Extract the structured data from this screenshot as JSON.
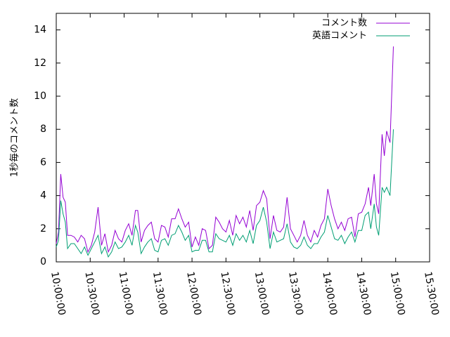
{
  "chart_data": {
    "type": "line",
    "ylabel": "1秒毎のコメント数",
    "xlim": [
      "10:00:00",
      "15:30:00"
    ],
    "ylim": [
      0,
      15
    ],
    "grid": false,
    "legend_position": "top-right",
    "xticks": [
      "10:00:00",
      "10:30:00",
      "11:00:00",
      "11:30:00",
      "12:00:00",
      "12:30:00",
      "13:00:00",
      "13:30:00",
      "14:00:00",
      "14:30:00",
      "15:00:00",
      "15:30:00"
    ],
    "yticks": [
      "0",
      "2",
      "4",
      "6",
      "8",
      "10",
      "12",
      "14"
    ],
    "series": [
      {
        "name": "コメント数",
        "color": "#9400d3",
        "points": [
          [
            "10:00:00",
            1.1
          ],
          [
            "10:02:00",
            1.8
          ],
          [
            "10:04:00",
            5.3
          ],
          [
            "10:06:00",
            3.9
          ],
          [
            "10:08:00",
            3.6
          ],
          [
            "10:10:00",
            1.6
          ],
          [
            "10:13:00",
            1.6
          ],
          [
            "10:16:00",
            1.5
          ],
          [
            "10:19:00",
            1.2
          ],
          [
            "10:22:00",
            1.6
          ],
          [
            "10:25:00",
            1.4
          ],
          [
            "10:28:00",
            0.6
          ],
          [
            "10:31:00",
            1.0
          ],
          [
            "10:34:00",
            1.8
          ],
          [
            "10:37:00",
            3.3
          ],
          [
            "10:40:00",
            1.0
          ],
          [
            "10:43:00",
            1.7
          ],
          [
            "10:46:00",
            0.6
          ],
          [
            "10:49:00",
            1.0
          ],
          [
            "10:52:00",
            1.9
          ],
          [
            "10:55:00",
            1.4
          ],
          [
            "10:58:00",
            1.2
          ],
          [
            "11:01:00",
            1.9
          ],
          [
            "11:04:00",
            2.3
          ],
          [
            "11:07:00",
            1.6
          ],
          [
            "11:10:00",
            3.1
          ],
          [
            "11:12:00",
            3.1
          ],
          [
            "11:15:00",
            1.2
          ],
          [
            "11:18:00",
            1.9
          ],
          [
            "11:21:00",
            2.2
          ],
          [
            "11:24:00",
            2.4
          ],
          [
            "11:27:00",
            1.4
          ],
          [
            "11:30:00",
            1.2
          ],
          [
            "11:33:00",
            2.2
          ],
          [
            "11:36:00",
            2.1
          ],
          [
            "11:39:00",
            1.5
          ],
          [
            "11:42:00",
            2.6
          ],
          [
            "11:45:00",
            2.6
          ],
          [
            "11:48:00",
            3.2
          ],
          [
            "11:51:00",
            2.6
          ],
          [
            "11:54:00",
            2.1
          ],
          [
            "11:57:00",
            2.4
          ],
          [
            "12:00:00",
            0.9
          ],
          [
            "12:03:00",
            1.5
          ],
          [
            "12:06:00",
            1.0
          ],
          [
            "12:09:00",
            2.0
          ],
          [
            "12:12:00",
            1.9
          ],
          [
            "12:15:00",
            0.8
          ],
          [
            "12:18:00",
            1.0
          ],
          [
            "12:21:00",
            2.7
          ],
          [
            "12:24:00",
            2.4
          ],
          [
            "12:27:00",
            2.0
          ],
          [
            "12:30:00",
            1.8
          ],
          [
            "12:33:00",
            2.5
          ],
          [
            "12:36:00",
            1.6
          ],
          [
            "12:39:00",
            2.8
          ],
          [
            "12:42:00",
            2.3
          ],
          [
            "12:45:00",
            2.7
          ],
          [
            "12:48:00",
            2.1
          ],
          [
            "12:51:00",
            3.1
          ],
          [
            "12:54:00",
            1.9
          ],
          [
            "12:57:00",
            3.4
          ],
          [
            "13:00:00",
            3.6
          ],
          [
            "13:03:00",
            4.3
          ],
          [
            "13:06:00",
            3.8
          ],
          [
            "13:09:00",
            1.4
          ],
          [
            "13:12:00",
            2.8
          ],
          [
            "13:15:00",
            1.9
          ],
          [
            "13:18:00",
            1.8
          ],
          [
            "13:21:00",
            2.1
          ],
          [
            "13:24:00",
            3.9
          ],
          [
            "13:27:00",
            2.0
          ],
          [
            "13:30:00",
            1.6
          ],
          [
            "13:33:00",
            1.2
          ],
          [
            "13:36:00",
            1.6
          ],
          [
            "13:39:00",
            2.5
          ],
          [
            "13:42:00",
            1.6
          ],
          [
            "13:45:00",
            1.2
          ],
          [
            "13:48:00",
            1.9
          ],
          [
            "13:51:00",
            1.5
          ],
          [
            "13:54:00",
            2.2
          ],
          [
            "13:57:00",
            2.6
          ],
          [
            "14:00:00",
            4.4
          ],
          [
            "14:03:00",
            3.4
          ],
          [
            "14:06:00",
            2.6
          ],
          [
            "14:09:00",
            2.0
          ],
          [
            "14:12:00",
            2.4
          ],
          [
            "14:15:00",
            1.9
          ],
          [
            "14:18:00",
            2.6
          ],
          [
            "14:21:00",
            2.7
          ],
          [
            "14:24:00",
            1.5
          ],
          [
            "14:27:00",
            2.9
          ],
          [
            "14:30:00",
            3.0
          ],
          [
            "14:33:00",
            3.5
          ],
          [
            "14:36:00",
            4.5
          ],
          [
            "14:38:00",
            3.4
          ],
          [
            "14:41:00",
            5.3
          ],
          [
            "14:43:00",
            3.5
          ],
          [
            "14:45:00",
            2.9
          ],
          [
            "14:48:00",
            7.7
          ],
          [
            "14:50:00",
            6.4
          ],
          [
            "14:52:00",
            7.9
          ],
          [
            "14:55:00",
            7.2
          ],
          [
            "14:58:00",
            13.0
          ]
        ]
      },
      {
        "name": "英語コメント",
        "color": "#009e73",
        "points": [
          [
            "10:00:00",
            0.9
          ],
          [
            "10:02:00",
            1.3
          ],
          [
            "10:04:00",
            3.7
          ],
          [
            "10:06:00",
            2.9
          ],
          [
            "10:08:00",
            2.4
          ],
          [
            "10:10:00",
            0.8
          ],
          [
            "10:13:00",
            1.1
          ],
          [
            "10:16:00",
            1.1
          ],
          [
            "10:19:00",
            0.8
          ],
          [
            "10:22:00",
            0.5
          ],
          [
            "10:25:00",
            0.9
          ],
          [
            "10:28:00",
            0.4
          ],
          [
            "10:31:00",
            0.8
          ],
          [
            "10:34:00",
            1.2
          ],
          [
            "10:37:00",
            1.6
          ],
          [
            "10:40:00",
            0.5
          ],
          [
            "10:43:00",
            0.9
          ],
          [
            "10:46:00",
            0.3
          ],
          [
            "10:49:00",
            0.6
          ],
          [
            "10:52:00",
            1.2
          ],
          [
            "10:55:00",
            0.8
          ],
          [
            "10:58:00",
            0.9
          ],
          [
            "11:01:00",
            1.2
          ],
          [
            "11:04:00",
            1.6
          ],
          [
            "11:07:00",
            1.0
          ],
          [
            "11:10:00",
            2.2
          ],
          [
            "11:12:00",
            1.8
          ],
          [
            "11:15:00",
            0.5
          ],
          [
            "11:18:00",
            0.9
          ],
          [
            "11:21:00",
            1.2
          ],
          [
            "11:24:00",
            1.4
          ],
          [
            "11:27:00",
            0.7
          ],
          [
            "11:30:00",
            0.6
          ],
          [
            "11:33:00",
            1.3
          ],
          [
            "11:36:00",
            1.4
          ],
          [
            "11:39:00",
            1.0
          ],
          [
            "11:42:00",
            1.6
          ],
          [
            "11:45:00",
            1.7
          ],
          [
            "11:48:00",
            2.2
          ],
          [
            "11:51:00",
            1.8
          ],
          [
            "11:54:00",
            1.3
          ],
          [
            "11:57:00",
            1.6
          ],
          [
            "12:00:00",
            0.6
          ],
          [
            "12:03:00",
            0.7
          ],
          [
            "12:06:00",
            0.7
          ],
          [
            "12:09:00",
            1.3
          ],
          [
            "12:12:00",
            1.3
          ],
          [
            "12:15:00",
            0.6
          ],
          [
            "12:18:00",
            0.6
          ],
          [
            "12:21:00",
            1.7
          ],
          [
            "12:24:00",
            1.4
          ],
          [
            "12:27:00",
            1.3
          ],
          [
            "12:30:00",
            1.2
          ],
          [
            "12:33:00",
            1.6
          ],
          [
            "12:36:00",
            1.0
          ],
          [
            "12:39:00",
            1.7
          ],
          [
            "12:42:00",
            1.3
          ],
          [
            "12:45:00",
            1.6
          ],
          [
            "12:48:00",
            1.2
          ],
          [
            "12:51:00",
            1.9
          ],
          [
            "12:54:00",
            1.1
          ],
          [
            "12:57:00",
            2.2
          ],
          [
            "13:00:00",
            2.5
          ],
          [
            "13:03:00",
            3.3
          ],
          [
            "13:06:00",
            2.4
          ],
          [
            "13:09:00",
            0.8
          ],
          [
            "13:12:00",
            1.8
          ],
          [
            "13:15:00",
            1.2
          ],
          [
            "13:18:00",
            1.3
          ],
          [
            "13:21:00",
            1.4
          ],
          [
            "13:24:00",
            2.3
          ],
          [
            "13:27:00",
            1.2
          ],
          [
            "13:30:00",
            0.9
          ],
          [
            "13:33:00",
            0.8
          ],
          [
            "13:36:00",
            1.0
          ],
          [
            "13:39:00",
            1.5
          ],
          [
            "13:42:00",
            1.0
          ],
          [
            "13:45:00",
            0.8
          ],
          [
            "13:48:00",
            1.1
          ],
          [
            "13:51:00",
            1.1
          ],
          [
            "13:54:00",
            1.5
          ],
          [
            "13:57:00",
            1.8
          ],
          [
            "14:00:00",
            2.8
          ],
          [
            "14:03:00",
            2.1
          ],
          [
            "14:06:00",
            1.4
          ],
          [
            "14:09:00",
            1.3
          ],
          [
            "14:12:00",
            1.6
          ],
          [
            "14:15:00",
            1.1
          ],
          [
            "14:18:00",
            1.5
          ],
          [
            "14:21:00",
            1.8
          ],
          [
            "14:24:00",
            1.2
          ],
          [
            "14:27:00",
            1.9
          ],
          [
            "14:30:00",
            1.9
          ],
          [
            "14:33:00",
            2.8
          ],
          [
            "14:36:00",
            3.0
          ],
          [
            "14:38:00",
            2.0
          ],
          [
            "14:41:00",
            3.5
          ],
          [
            "14:43:00",
            2.1
          ],
          [
            "14:45:00",
            1.6
          ],
          [
            "14:48:00",
            4.5
          ],
          [
            "14:50:00",
            4.2
          ],
          [
            "14:52:00",
            4.5
          ],
          [
            "14:55:00",
            4.0
          ],
          [
            "14:58:00",
            8.0
          ]
        ]
      }
    ]
  }
}
